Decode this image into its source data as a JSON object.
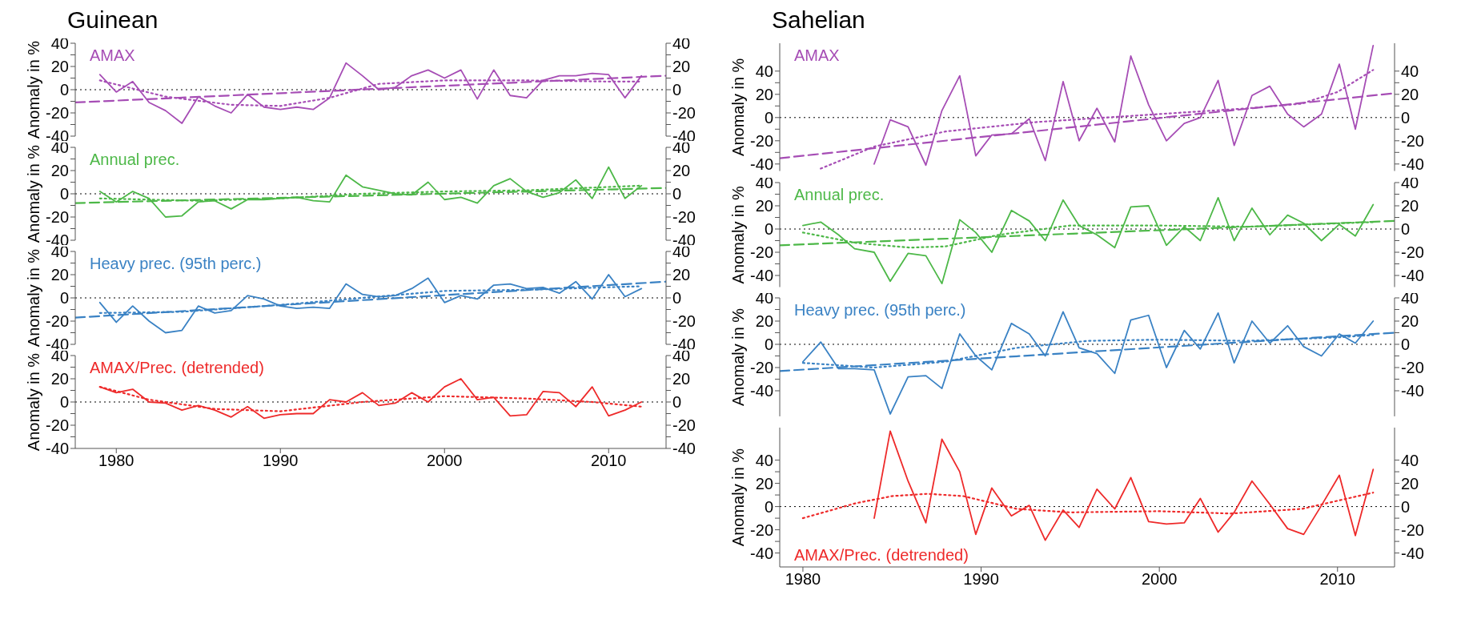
{
  "chart_data": [
    {
      "type": "line",
      "title": "Guinean",
      "ylabel": "Anomaly in %",
      "xlim": [
        1977.5,
        2013.5
      ],
      "xticks": [
        1980,
        1990,
        2000,
        2010
      ],
      "ylim": [
        -40,
        40
      ],
      "yticks": [
        -40,
        {
          "value": -30,
          "label": null
        },
        -20,
        {
          "value": -10,
          "label": null
        },
        0,
        {
          "value": 10,
          "label": null
        },
        20,
        {
          "value": 30,
          "label": null
        },
        40
      ],
      "y2lim": [
        -40,
        40
      ],
      "y2ticks": [
        -40,
        {
          "value": -30,
          "label": null
        },
        -20,
        {
          "value": -10,
          "label": null
        },
        0,
        {
          "value": 10,
          "label": null
        },
        20,
        {
          "value": 30,
          "label": null
        },
        40
      ],
      "tick_labels": "y",
      "legend": "top left",
      "ref_lines": [
        {
          "axis": "y",
          "value": 0,
          "color": "#000000",
          "line_style": "dotted"
        }
      ],
      "series": [
        {
          "name": "AMAX",
          "color": "#a64db5",
          "line_style": "solid",
          "x": [
            1979,
            1980,
            1981,
            1982,
            1983,
            1984,
            1985,
            1986,
            1987,
            1988,
            1989,
            1990,
            1991,
            1992,
            1993,
            1994,
            1995,
            1996,
            1997,
            1998,
            1999,
            2000,
            2001,
            2002,
            2003,
            2004,
            2005,
            2006,
            2007,
            2008,
            2009,
            2010,
            2011,
            2012
          ],
          "values": [
            13,
            -2,
            7,
            -11,
            -18,
            -29,
            -6,
            -14,
            -20,
            -4,
            -15,
            -17,
            -15,
            -17,
            -7,
            23,
            12,
            0,
            2,
            12,
            17,
            10,
            17,
            -8,
            17,
            -5,
            -7,
            8,
            12,
            12,
            14,
            13,
            -7,
            12
          ]
        },
        {
          "color": "#a64db5",
          "line_style": "dashed",
          "x": [
            1977.5,
            2013.5
          ],
          "values": [
            -11,
            12
          ]
        },
        {
          "color": "#a64db5",
          "line_style": "dotted",
          "x": [
            1979,
            1983,
            1987,
            1990,
            1993,
            1996,
            2000,
            2005,
            2010,
            2012
          ],
          "values": [
            8,
            -6,
            -13,
            -14,
            -7,
            5,
            8,
            8,
            7,
            7
          ]
        }
      ]
    },
    {
      "type": "line",
      "ylabel": "Anomaly in %",
      "xlim": [
        1977.5,
        2013.5
      ],
      "xticks": [
        1980,
        1990,
        2000,
        2010
      ],
      "ylim": [
        -40,
        40
      ],
      "yticks": [
        -40,
        {
          "value": -30,
          "label": null
        },
        -20,
        {
          "value": -10,
          "label": null
        },
        0,
        {
          "value": 10,
          "label": null
        },
        20,
        {
          "value": 30,
          "label": null
        },
        40
      ],
      "y2lim": [
        -40,
        40
      ],
      "y2ticks": [
        -40,
        {
          "value": -30,
          "label": null
        },
        -20,
        {
          "value": -10,
          "label": null
        },
        0,
        {
          "value": 10,
          "label": null
        },
        20,
        {
          "value": 30,
          "label": null
        },
        40
      ],
      "tick_labels": "y",
      "legend": "top left",
      "ref_lines": [
        {
          "axis": "y",
          "value": 0,
          "color": "#000000",
          "line_style": "dotted"
        }
      ],
      "series": [
        {
          "name": "Annual prec.",
          "color": "#4db848",
          "line_style": "solid",
          "x": [
            1979,
            1980,
            1981,
            1982,
            1983,
            1984,
            1985,
            1986,
            1987,
            1988,
            1989,
            1990,
            1991,
            1992,
            1993,
            1994,
            1995,
            1996,
            1997,
            1998,
            1999,
            2000,
            2001,
            2002,
            2003,
            2004,
            2005,
            2006,
            2007,
            2008,
            2009,
            2010,
            2011,
            2012
          ],
          "values": [
            2,
            -7,
            2,
            -4,
            -20,
            -19,
            -7,
            -6,
            -13,
            -5,
            -5,
            -4,
            -3,
            -6,
            -7,
            16,
            6,
            3,
            0,
            -1,
            10,
            -5,
            -3,
            -8,
            7,
            13,
            2,
            -3,
            1,
            12,
            -4,
            23,
            -4,
            7
          ]
        },
        {
          "color": "#4db848",
          "line_style": "dashed",
          "x": [
            1977.5,
            2013.5
          ],
          "values": [
            -8,
            5
          ]
        },
        {
          "color": "#4db848",
          "line_style": "dotted",
          "x": [
            1979,
            1985,
            1990,
            1995,
            2000,
            2005,
            2012
          ],
          "values": [
            -4,
            -6,
            -4,
            0,
            2,
            3,
            7
          ]
        }
      ]
    },
    {
      "type": "line",
      "ylabel": "Anomaly in %",
      "xlim": [
        1977.5,
        2013.5
      ],
      "xticks": [
        1980,
        1990,
        2000,
        2010
      ],
      "ylim": [
        -40,
        40
      ],
      "yticks": [
        -40,
        {
          "value": -30,
          "label": null
        },
        -20,
        {
          "value": -10,
          "label": null
        },
        0,
        {
          "value": 10,
          "label": null
        },
        20,
        {
          "value": 30,
          "label": null
        },
        40
      ],
      "y2lim": [
        -40,
        40
      ],
      "y2ticks": [
        -40,
        {
          "value": -30,
          "label": null
        },
        -20,
        {
          "value": -10,
          "label": null
        },
        0,
        {
          "value": 10,
          "label": null
        },
        20,
        {
          "value": 30,
          "label": null
        },
        40
      ],
      "tick_labels": "y",
      "legend": "top left",
      "ref_lines": [
        {
          "axis": "y",
          "value": 0,
          "color": "#000000",
          "line_style": "dotted"
        }
      ],
      "series": [
        {
          "name": "Heavy prec. (95th perc.)",
          "color": "#3a82c4",
          "line_style": "solid",
          "x": [
            1979,
            1980,
            1981,
            1982,
            1983,
            1984,
            1985,
            1986,
            1987,
            1988,
            1989,
            1990,
            1991,
            1992,
            1993,
            1994,
            1995,
            1996,
            1997,
            1998,
            1999,
            2000,
            2001,
            2002,
            2003,
            2004,
            2005,
            2006,
            2007,
            2008,
            2009,
            2010,
            2011,
            2012
          ],
          "values": [
            -4,
            -21,
            -7,
            -20,
            -30,
            -28,
            -7,
            -13,
            -11,
            2,
            -1,
            -7,
            -9,
            -8,
            -9,
            12,
            3,
            1,
            2,
            8,
            17,
            -4,
            2,
            -1,
            11,
            12,
            8,
            9,
            4,
            14,
            -1,
            20,
            1,
            8
          ]
        },
        {
          "color": "#3a82c4",
          "line_style": "dashed",
          "x": [
            1977.5,
            2013.5
          ],
          "values": [
            -17,
            14
          ]
        },
        {
          "color": "#3a82c4",
          "line_style": "dotted",
          "x": [
            1979,
            1984,
            1990,
            1995,
            2000,
            2005,
            2012
          ],
          "values": [
            -13,
            -12,
            -6,
            0,
            6,
            7,
            10
          ]
        }
      ]
    },
    {
      "type": "line",
      "ylabel": "Anomaly in %",
      "xlim": [
        1977.5,
        2013.5
      ],
      "xticks": [
        1980,
        1990,
        2000,
        2010
      ],
      "ylim": [
        -40,
        40
      ],
      "yticks": [
        -40,
        {
          "value": -30,
          "label": null
        },
        -20,
        {
          "value": -10,
          "label": null
        },
        0,
        {
          "value": 10,
          "label": null
        },
        20,
        {
          "value": 30,
          "label": null
        },
        40
      ],
      "y2lim": [
        -40,
        40
      ],
      "y2ticks": [
        -40,
        {
          "value": -30,
          "label": null
        },
        -20,
        {
          "value": -10,
          "label": null
        },
        0,
        {
          "value": 10,
          "label": null
        },
        20,
        {
          "value": 30,
          "label": null
        },
        40
      ],
      "legend": "top left",
      "ref_lines": [
        {
          "axis": "y",
          "value": 0,
          "color": "#000000",
          "line_style": "dotted"
        }
      ],
      "series": [
        {
          "name": "AMAX/Prec. (detrended)",
          "color": "#ee2a2a",
          "line_style": "solid",
          "x": [
            1979,
            1980,
            1981,
            1982,
            1983,
            1984,
            1985,
            1986,
            1987,
            1988,
            1989,
            1990,
            1991,
            1992,
            1993,
            1994,
            1995,
            1996,
            1997,
            1998,
            1999,
            2000,
            2001,
            2002,
            2003,
            2004,
            2005,
            2006,
            2007,
            2008,
            2009,
            2010,
            2011,
            2012
          ],
          "values": [
            13,
            8,
            11,
            0,
            -1,
            -7,
            -3,
            -7,
            -13,
            -4,
            -14,
            -11,
            -10,
            -10,
            2,
            0,
            8,
            -3,
            -1,
            8,
            0,
            13,
            20,
            2,
            4,
            -12,
            -11,
            9,
            8,
            -4,
            13,
            -12,
            -7,
            0
          ]
        },
        {
          "color": "#ee2a2a",
          "line_style": "dotted",
          "x": [
            1979,
            1982,
            1986,
            1990,
            1995,
            2000,
            2005,
            2009,
            2012
          ],
          "values": [
            13,
            2,
            -6,
            -8,
            0,
            5,
            3,
            0,
            -4
          ]
        }
      ]
    },
    {
      "type": "line",
      "title": "Sahelian",
      "ylabel": "Anomaly in %",
      "xlim": [
        1978.7,
        2013.2
      ],
      "xticks": [
        1980,
        1990,
        2000,
        2010
      ],
      "ylim": [
        -46,
        64
      ],
      "yticks": [
        -40,
        {
          "value": -30,
          "label": null
        },
        -20,
        {
          "value": -10,
          "label": null
        },
        0,
        {
          "value": 10,
          "label": null
        },
        20,
        {
          "value": 30,
          "label": null
        },
        40
      ],
      "y2lim": [
        -46,
        64
      ],
      "y2ticks": [
        -40,
        {
          "value": -30,
          "label": null
        },
        -20,
        {
          "value": -10,
          "label": null
        },
        0,
        {
          "value": 10,
          "label": null
        },
        20,
        {
          "value": 30,
          "label": null
        },
        40
      ],
      "tick_labels": "y",
      "legend": "top left",
      "ref_lines": [
        {
          "axis": "y",
          "value": 0,
          "color": "#000000",
          "line_style": "dotted"
        }
      ],
      "series": [
        {
          "name": "AMAX",
          "color": "#a64db5",
          "line_style": "solid",
          "x": [
            1984.0,
            1984.9,
            1985.9,
            1986.9,
            1987.8,
            1988.8,
            1989.7,
            1990.6,
            1991.7,
            1992.7,
            1993.6,
            1994.6,
            1995.5,
            1996.5,
            1997.5,
            1998.4,
            1999.4,
            2000.4,
            2001.4,
            2002.3,
            2003.3,
            2004.2,
            2005.2,
            2006.2,
            2007.2,
            2008.1,
            2009.1,
            2010.1,
            2011.0,
            2012.0
          ],
          "values": [
            -40,
            -2,
            -8,
            -41,
            6,
            36,
            -33,
            -15,
            -14,
            -1,
            -37,
            31,
            -20,
            8,
            -21,
            53,
            11,
            -20,
            -5,
            0,
            32,
            -24,
            19,
            27,
            3,
            -8,
            3,
            46,
            -10,
            62
          ]
        },
        {
          "color": "#a64db5",
          "line_style": "dashed",
          "x": [
            1978.7,
            2013.2
          ],
          "values": [
            -35,
            21
          ]
        },
        {
          "color": "#a64db5",
          "line_style": "dotted",
          "x": [
            1981,
            1984,
            1988,
            1993,
            2000,
            2005,
            2008,
            2010,
            2012
          ],
          "values": [
            -44,
            -25,
            -12,
            -4,
            3,
            8,
            12,
            22,
            41
          ]
        }
      ]
    },
    {
      "type": "line",
      "ylabel": "Anomaly in %",
      "xlim": [
        1978.7,
        2013.2
      ],
      "xticks": [
        1980,
        1990,
        2000,
        2010
      ],
      "ylim": [
        -50,
        40
      ],
      "yticks": [
        -40,
        {
          "value": -30,
          "label": null
        },
        -20,
        {
          "value": -10,
          "label": null
        },
        0,
        {
          "value": 10,
          "label": null
        },
        20,
        {
          "value": 30,
          "label": null
        },
        40
      ],
      "y2lim": [
        -50,
        40
      ],
      "y2ticks": [
        -40,
        {
          "value": -30,
          "label": null
        },
        -20,
        {
          "value": -10,
          "label": null
        },
        0,
        {
          "value": 10,
          "label": null
        },
        20,
        {
          "value": 30,
          "label": null
        },
        40
      ],
      "tick_labels": "y",
      "legend": "top left",
      "ref_lines": [
        {
          "axis": "y",
          "value": 0,
          "color": "#000000",
          "line_style": "dotted"
        }
      ],
      "series": [
        {
          "name": "Annual prec.",
          "color": "#4db848",
          "line_style": "solid",
          "x": [
            1980.0,
            1981.0,
            1982.0,
            1982.9,
            1984.0,
            1984.9,
            1985.9,
            1986.9,
            1987.8,
            1988.8,
            1989.7,
            1990.6,
            1991.7,
            1992.7,
            1993.6,
            1994.6,
            1995.5,
            1996.5,
            1997.5,
            1998.4,
            1999.4,
            2000.4,
            2001.4,
            2002.3,
            2003.3,
            2004.2,
            2005.2,
            2006.2,
            2007.2,
            2008.1,
            2009.1,
            2010.1,
            2011.0,
            2012.0
          ],
          "values": [
            3,
            6,
            -5,
            -17,
            -20,
            -45,
            -21,
            -23,
            -47,
            8,
            -3,
            -20,
            16,
            7,
            -10,
            25,
            3,
            -5,
            -16,
            19,
            20,
            -14,
            2,
            -10,
            27,
            -10,
            18,
            -5,
            12,
            5,
            -10,
            4,
            -6,
            21
          ]
        },
        {
          "color": "#4db848",
          "line_style": "dashed",
          "x": [
            1978.7,
            2013.2
          ],
          "values": [
            -14,
            7
          ]
        },
        {
          "color": "#4db848",
          "line_style": "dotted",
          "x": [
            1980,
            1983,
            1986,
            1988,
            1991,
            1995,
            2000,
            2005,
            2012
          ],
          "values": [
            -3,
            -12,
            -16,
            -15,
            -5,
            3,
            3,
            2,
            6
          ]
        }
      ]
    },
    {
      "type": "line",
      "ylabel": "Anomaly in %",
      "xlim": [
        1978.7,
        2013.2
      ],
      "xticks": [
        1980,
        1990,
        2000,
        2010
      ],
      "ylim": [
        -62,
        40
      ],
      "yticks": [
        -40,
        {
          "value": -30,
          "label": null
        },
        -20,
        {
          "value": -10,
          "label": null
        },
        0,
        {
          "value": 10,
          "label": null
        },
        20,
        {
          "value": 30,
          "label": null
        },
        40
      ],
      "y2lim": [
        -62,
        40
      ],
      "y2ticks": [
        -40,
        {
          "value": -30,
          "label": null
        },
        -20,
        {
          "value": -10,
          "label": null
        },
        0,
        {
          "value": 10,
          "label": null
        },
        20,
        {
          "value": 30,
          "label": null
        },
        40
      ],
      "tick_labels": "y",
      "legend": "top left",
      "ref_lines": [
        {
          "axis": "y",
          "value": 0,
          "color": "#000000",
          "line_style": "dotted"
        }
      ],
      "series": [
        {
          "name": "Heavy prec. (95th perc.)",
          "color": "#3a82c4",
          "line_style": "solid",
          "x": [
            1980.0,
            1981.0,
            1982.0,
            1982.9,
            1984.0,
            1984.9,
            1985.9,
            1986.9,
            1987.8,
            1988.8,
            1989.7,
            1990.6,
            1991.7,
            1992.7,
            1993.6,
            1994.6,
            1995.5,
            1996.5,
            1997.5,
            1998.4,
            1999.4,
            2000.4,
            2001.4,
            2002.3,
            2003.3,
            2004.2,
            2005.2,
            2006.2,
            2007.2,
            2008.1,
            2009.1,
            2010.1,
            2011.0,
            2012.0
          ],
          "values": [
            -15,
            2,
            -21,
            -21,
            -22,
            -60,
            -28,
            -27,
            -38,
            9,
            -10,
            -22,
            18,
            9,
            -10,
            28,
            -3,
            -8,
            -25,
            21,
            25,
            -20,
            12,
            -4,
            27,
            -16,
            20,
            1,
            16,
            -2,
            -10,
            9,
            1,
            20
          ]
        },
        {
          "color": "#3a82c4",
          "line_style": "dashed",
          "x": [
            1978.7,
            2013.2
          ],
          "values": [
            -23,
            10
          ]
        },
        {
          "color": "#3a82c4",
          "line_style": "dotted",
          "x": [
            1980,
            1984,
            1988,
            1992,
            1996,
            2000,
            2005,
            2010,
            2012
          ],
          "values": [
            -16,
            -20,
            -15,
            -3,
            3,
            4,
            3,
            6,
            8
          ]
        }
      ]
    },
    {
      "type": "line",
      "ylabel": "Anomaly in %",
      "xlim": [
        1978.7,
        2013.2
      ],
      "xticks": [
        1980,
        1990,
        2000,
        2010
      ],
      "ylim": [
        -52,
        68
      ],
      "yticks": [
        -40,
        {
          "value": -30,
          "label": null
        },
        -20,
        {
          "value": -10,
          "label": null
        },
        0,
        {
          "value": 10,
          "label": null
        },
        20,
        {
          "value": 30,
          "label": null
        },
        40
      ],
      "y2lim": [
        -52,
        68
      ],
      "y2ticks": [
        -40,
        {
          "value": -30,
          "label": null
        },
        -20,
        {
          "value": -10,
          "label": null
        },
        0,
        {
          "value": 10,
          "label": null
        },
        20,
        {
          "value": 30,
          "label": null
        },
        40
      ],
      "legend": "bottom left",
      "ref_lines": [
        {
          "axis": "y",
          "value": 0,
          "color": "#000000",
          "line_style": "dotted"
        }
      ],
      "series": [
        {
          "name": "AMAX/Prec. (detrended)",
          "color": "#ee2a2a",
          "line_style": "solid",
          "x": [
            1984.0,
            1984.9,
            1985.9,
            1986.9,
            1987.8,
            1988.8,
            1989.7,
            1990.6,
            1991.7,
            1992.7,
            1993.6,
            1994.6,
            1995.5,
            1996.5,
            1997.5,
            1998.4,
            1999.4,
            2000.4,
            2001.4,
            2002.3,
            2003.3,
            2004.2,
            2005.2,
            2006.2,
            2007.2,
            2008.1,
            2009.1,
            2010.1,
            2011.0,
            2012.0
          ],
          "values": [
            -10,
            65,
            22,
            -14,
            58,
            30,
            -24,
            16,
            -8,
            1,
            -29,
            -3,
            -18,
            15,
            -2,
            25,
            -13,
            -15,
            -14,
            7,
            -22,
            -5,
            22,
            2,
            -19,
            -24,
            1,
            27,
            -25,
            32
          ]
        },
        {
          "color": "#ee2a2a",
          "line_style": "dotted",
          "x": [
            1980,
            1983,
            1985,
            1987,
            1989,
            1992,
            1995,
            2000,
            2004,
            2008,
            2012
          ],
          "values": [
            -10,
            3,
            9,
            11,
            9,
            -2,
            -5,
            -4,
            -6,
            -2,
            12
          ]
        }
      ]
    }
  ]
}
